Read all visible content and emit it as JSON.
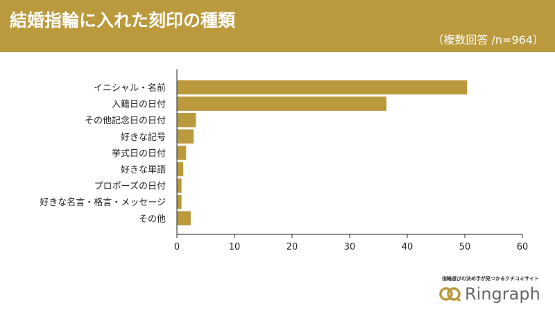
{
  "header": {
    "title": "結婚指輪に入れた刻印の種類",
    "subtitle": "（複数回答 /n=964）"
  },
  "chart_data": {
    "type": "bar",
    "orientation": "horizontal",
    "categories": [
      "イニシャル・名前",
      "入籍日の日付",
      "その他記念日の日付",
      "好きな記号",
      "挙式日の日付",
      "好きな単語",
      "プロポーズの日付",
      "好きな名言・格言・メッセージ",
      "その他"
    ],
    "values": [
      50.4,
      36.4,
      3.3,
      2.9,
      1.6,
      1.1,
      0.8,
      0.8,
      2.4
    ],
    "xlim": [
      0,
      60
    ],
    "xticks": [
      0,
      10,
      20,
      30,
      40,
      50,
      60
    ],
    "bar_color": "#bb9a3e",
    "grid": false
  },
  "footer": {
    "tagline": "指輪選びの決め手が見つかるクチコミサイト",
    "logo": "Ringraph"
  }
}
